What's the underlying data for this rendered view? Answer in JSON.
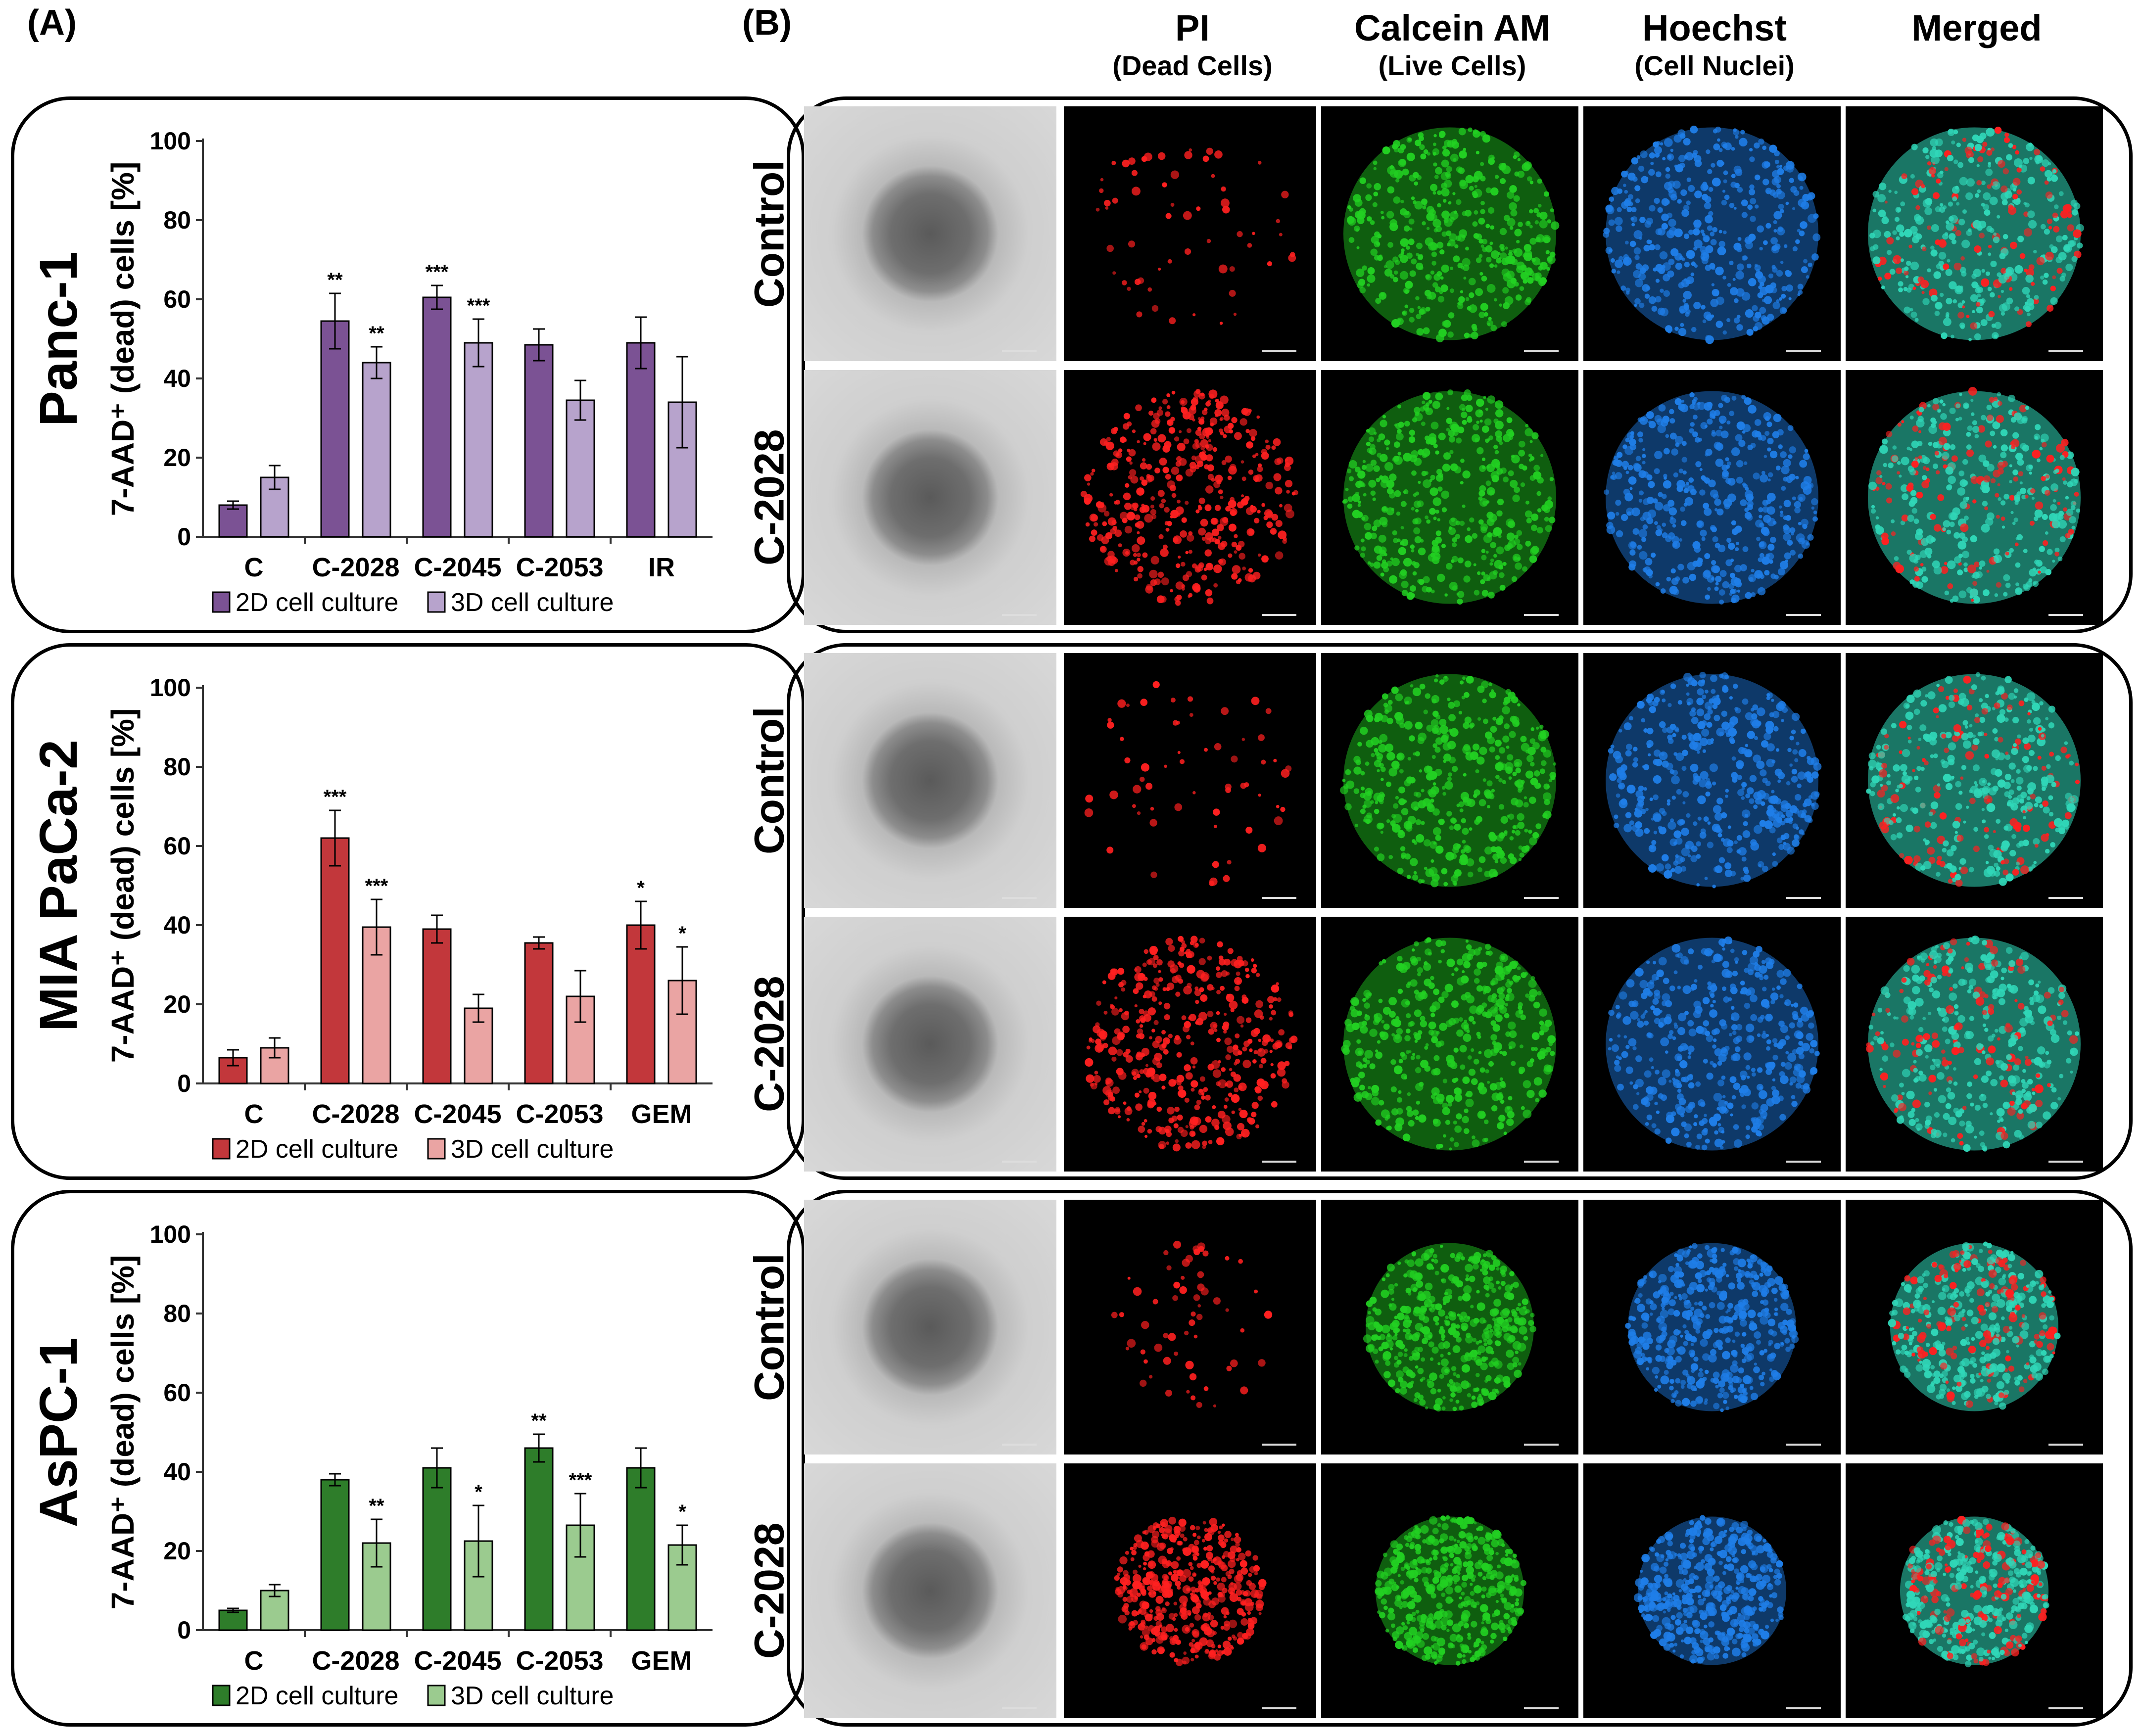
{
  "panel_a_label": "(A)",
  "panel_b_label": "(B)",
  "columns": [
    {
      "title": "PI",
      "subtitle": "(Dead Cells)"
    },
    {
      "title": "Calcein AM",
      "subtitle": "(Live Cells)"
    },
    {
      "title": "Hoechst",
      "subtitle": "(Cell Nuclei)"
    },
    {
      "title": "Merged",
      "subtitle": ""
    }
  ],
  "row_labels": [
    "Control",
    "C-2028"
  ],
  "colors": {
    "panc1_2d": "#7B5294",
    "panc1_3d": "#B7A3CC",
    "mia_2d": "#C2373B",
    "mia_3d": "#EAA4A3",
    "aspc_2d": "#2E7D2A",
    "aspc_3d": "#9BCB8F",
    "pi": "#ff2020",
    "calcein": "#22d022",
    "hoechst": "#1f7ee8",
    "merged": "#30d7b8"
  },
  "chart_data": [
    {
      "type": "bar",
      "cell_line": "Panc-1",
      "ylabel": "7-AAD⁺ (dead) cells [%]",
      "ylim": [
        0,
        100
      ],
      "yticks": [
        0,
        20,
        40,
        60,
        80,
        100
      ],
      "categories": [
        "C",
        "C-2028",
        "C-2045",
        "C-2053",
        "IR"
      ],
      "series": [
        {
          "name": "2D cell culture",
          "values": [
            8,
            54.5,
            60.5,
            48.5,
            49
          ],
          "errors": [
            1,
            7,
            3,
            4,
            6.5
          ],
          "sig": [
            "",
            "**",
            "***",
            "",
            ""
          ]
        },
        {
          "name": "3D cell culture",
          "values": [
            15,
            44,
            49,
            34.5,
            34
          ],
          "errors": [
            3,
            4,
            6,
            5,
            11.5
          ],
          "sig": [
            "",
            "**",
            "***",
            "",
            ""
          ]
        }
      ]
    },
    {
      "type": "bar",
      "cell_line": "MIA PaCa-2",
      "ylabel": "7-AAD⁺ (dead) cells [%]",
      "ylim": [
        0,
        100
      ],
      "yticks": [
        0,
        20,
        40,
        60,
        80,
        100
      ],
      "categories": [
        "C",
        "C-2028",
        "C-2045",
        "C-2053",
        "GEM"
      ],
      "series": [
        {
          "name": "2D cell culture",
          "values": [
            6.5,
            62,
            39,
            35.5,
            40
          ],
          "errors": [
            2,
            7,
            3.5,
            1.5,
            6
          ],
          "sig": [
            "",
            "***",
            "",
            "",
            "*"
          ]
        },
        {
          "name": "3D cell culture",
          "values": [
            9,
            39.5,
            19,
            22,
            26
          ],
          "errors": [
            2.5,
            7,
            3.5,
            6.5,
            8.5
          ],
          "sig": [
            "",
            "***",
            "",
            "",
            "*"
          ]
        }
      ]
    },
    {
      "type": "bar",
      "cell_line": "AsPC-1",
      "ylabel": "7-AAD⁺ (dead) cells [%]",
      "ylim": [
        0,
        100
      ],
      "yticks": [
        0,
        20,
        40,
        60,
        80,
        100
      ],
      "categories": [
        "C",
        "C-2028",
        "C-2045",
        "C-2053",
        "GEM"
      ],
      "series": [
        {
          "name": "2D cell culture",
          "values": [
            5,
            38,
            41,
            46,
            41
          ],
          "errors": [
            0.5,
            1.5,
            5,
            3.5,
            5
          ],
          "sig": [
            "",
            "",
            "",
            "**",
            ""
          ]
        },
        {
          "name": "3D cell culture",
          "values": [
            10,
            22,
            22.5,
            26.5,
            21.5
          ],
          "errors": [
            1.5,
            6,
            9,
            8,
            5
          ],
          "sig": [
            "",
            "**",
            "*",
            "***",
            "*"
          ]
        }
      ]
    }
  ]
}
